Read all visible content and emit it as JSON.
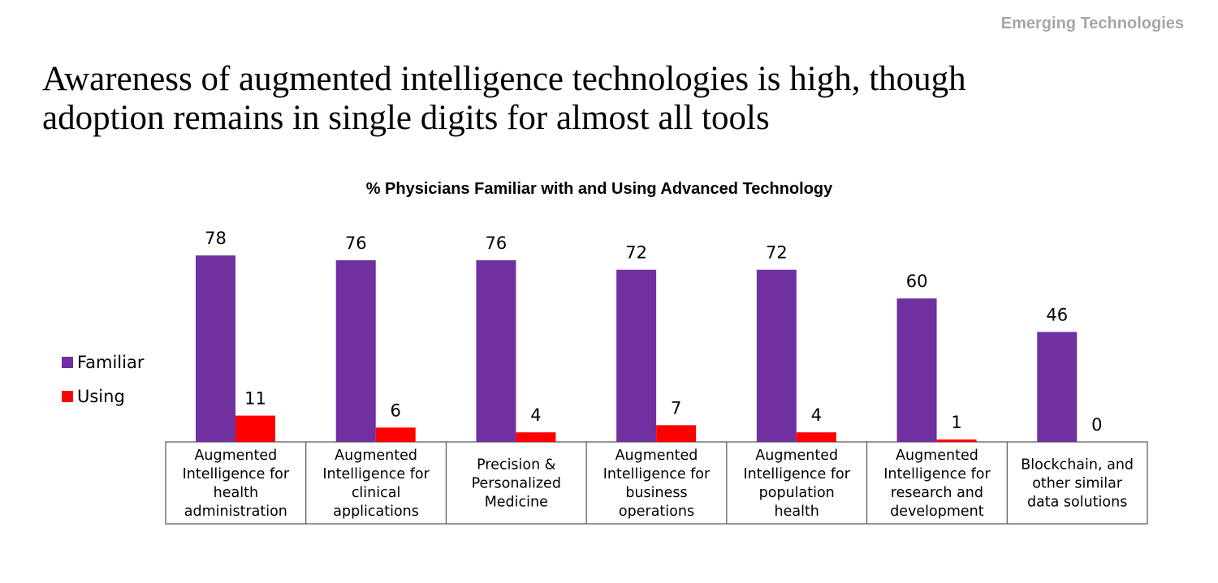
{
  "header": {
    "section_tag": "Emerging Technologies"
  },
  "slide": {
    "title_line1": "Awareness of augmented intelligence technologies is high, though",
    "title_line2": "adoption remains in single digits for almost all tools"
  },
  "colors": {
    "familiar": "#7030a0",
    "using": "#ff0000"
  },
  "chart_data": {
    "type": "bar",
    "title": "% Physicians Familiar with and Using Advanced Technology",
    "categories": [
      [
        "Augmented",
        "Intelligence for",
        "health",
        "administration"
      ],
      [
        "Augmented",
        "Intelligence for",
        "clinical",
        "applications"
      ],
      [
        "Precision &",
        "Personalized",
        "Medicine"
      ],
      [
        "Augmented",
        "Intelligence for",
        "business",
        "operations"
      ],
      [
        "Augmented",
        "Intelligence for",
        "population",
        "health"
      ],
      [
        "Augmented",
        "Intelligence for",
        "research and",
        "development"
      ],
      [
        "Blockchain, and",
        "other similar",
        "data solutions"
      ]
    ],
    "series": [
      {
        "name": "Familiar",
        "values": [
          78,
          76,
          76,
          72,
          72,
          60,
          46
        ]
      },
      {
        "name": "Using",
        "values": [
          11,
          6,
          4,
          7,
          4,
          1,
          0
        ]
      }
    ],
    "ylim": [
      0,
      78
    ],
    "grid": false,
    "legend_position": "left",
    "data_labels": true
  }
}
